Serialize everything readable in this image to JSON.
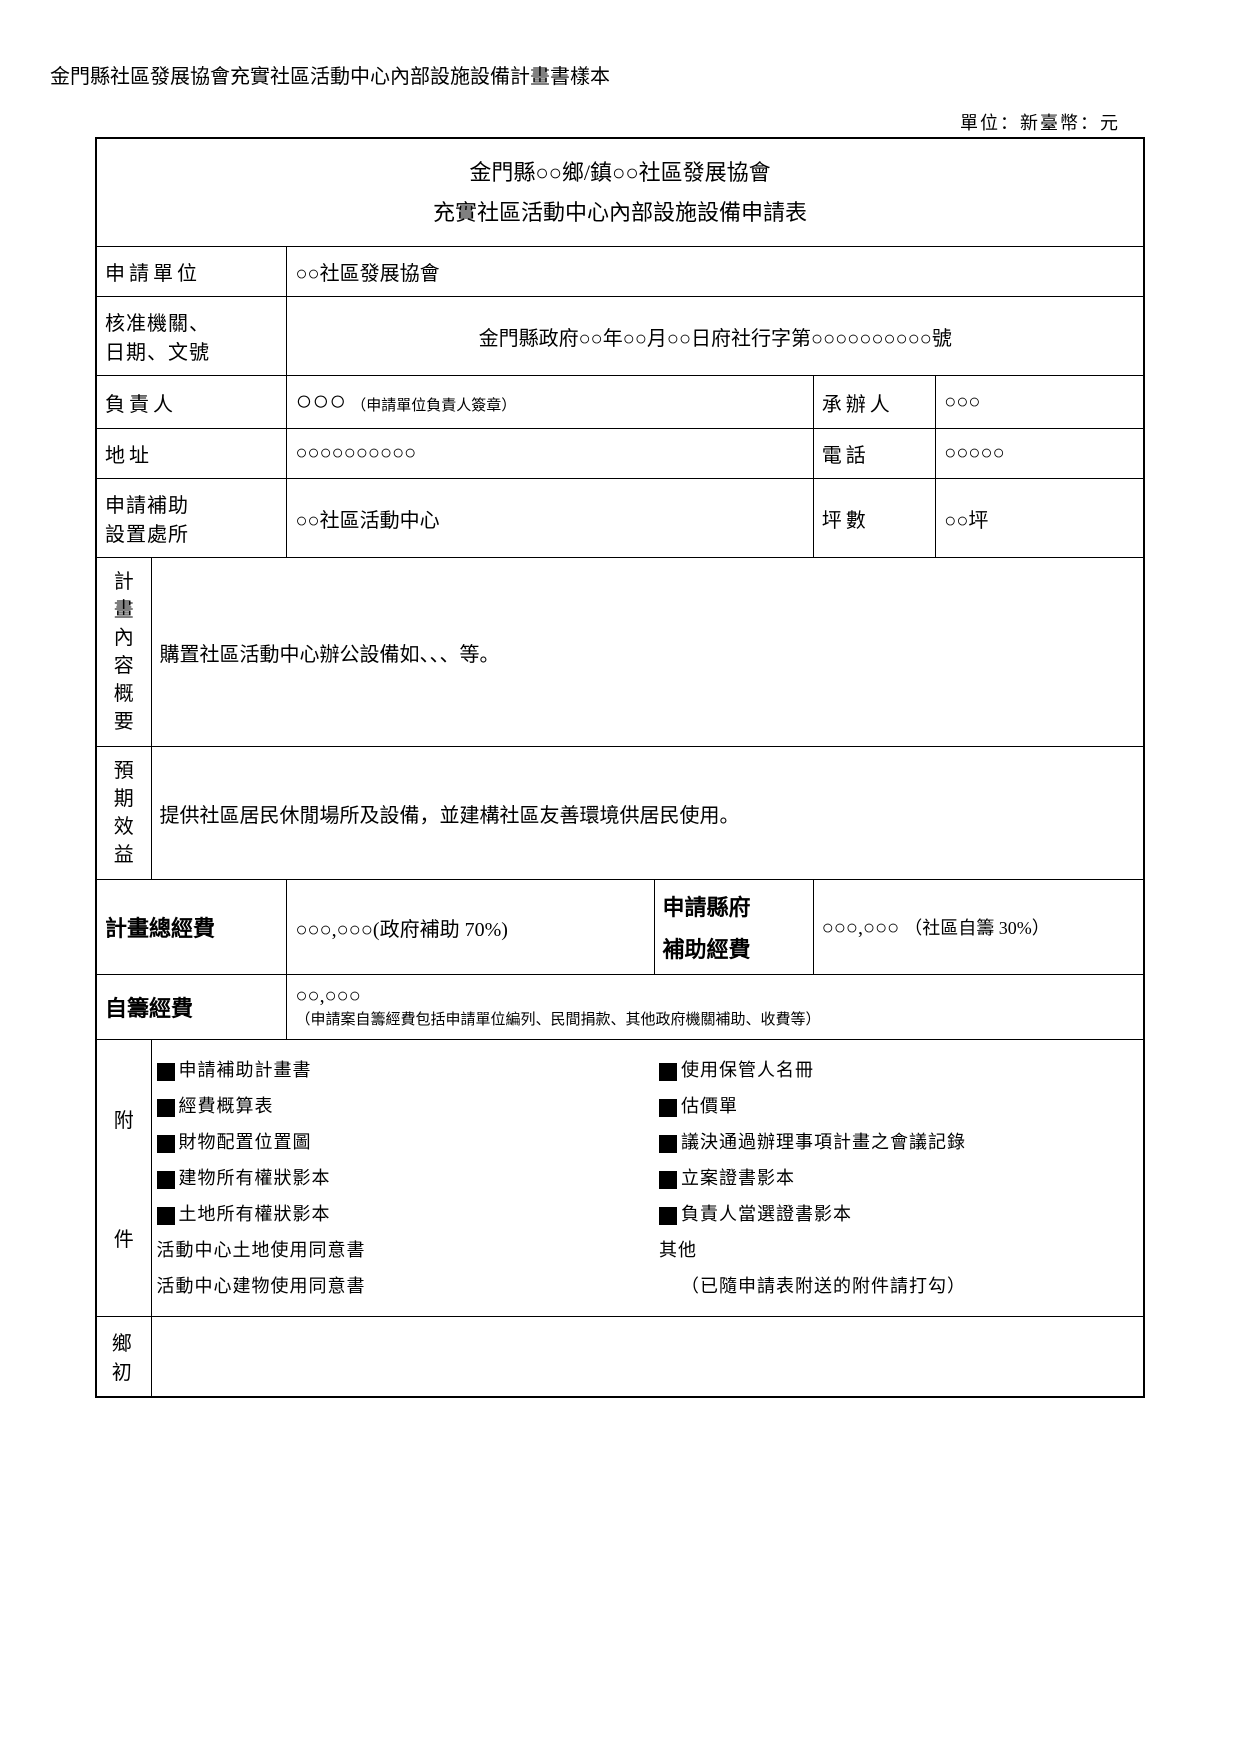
{
  "doc_title": "金門縣社區發展協會充實社區活動中心內部設施設備計畫書樣本",
  "unit_label": "單位：新臺幣：元",
  "header": {
    "line1": "金門縣○○鄉/鎮○○社區發展協會",
    "line2": "充實社區活動中心內部設施設備申請表"
  },
  "rows": {
    "apply_unit_label": "申請單位",
    "apply_unit_value": "○○社區發展協會",
    "approval_label1": "核准機關、",
    "approval_label2": "日期、文號",
    "approval_value": "金門縣政府○○年○○月○○日府社行字第○○○○○○○○○○號",
    "responsible_label": "負責人",
    "responsible_value": "○○○",
    "responsible_note": "（申請單位負責人簽章）",
    "handler_label": "承辦人",
    "handler_value": "○○○",
    "address_label": "地址",
    "address_value": "○○○○○○○○○○",
    "phone_label": "電話",
    "phone_value": "○○○○○",
    "location_label1": "申請補助",
    "location_label2": "設置處所",
    "location_value": "○○社區活動中心",
    "area_label": "坪數",
    "area_value": "○○坪",
    "plan_content_label": "計畫內容概要",
    "plan_content_value": "購置社區活動中心辦公設備如、、、等。",
    "expected_label": "預期效益",
    "expected_value": "提供社區居民休閒場所及設備，並建構社區友善環境供居民使用。",
    "total_budget_label": "計畫總經費",
    "total_budget_value": "○○○,○○○",
    "total_budget_note": "(政府補助 70%)",
    "county_subsidy_label1": "申請縣府",
    "county_subsidy_label2": "補助經費",
    "county_subsidy_value": "○○○,○○○",
    "county_subsidy_note": "（社區自籌 30%）",
    "self_fund_label": "自籌經費",
    "self_fund_value": "○○,○○○",
    "self_fund_note": "（申請案自籌經費包括申請單位編列、民間捐款、其他政府機關補助、收費等）",
    "attach_label_top": "附",
    "attach_label_bottom": "件",
    "footer_label": "鄉初"
  },
  "attachments_left": [
    {
      "checked": true,
      "text": "申請補助計畫書"
    },
    {
      "checked": true,
      "text": "經費概算表"
    },
    {
      "checked": true,
      "text": "財物配置位置圖"
    },
    {
      "checked": true,
      "text": "建物所有權狀影本"
    },
    {
      "checked": true,
      "text": "土地所有權狀影本"
    },
    {
      "checked": false,
      "text": "活動中心土地使用同意書"
    },
    {
      "checked": false,
      "text": "活動中心建物使用同意書"
    }
  ],
  "attachments_right": [
    {
      "checked": true,
      "text": "使用保管人名冊"
    },
    {
      "checked": true,
      "text": "估價單"
    },
    {
      "checked": true,
      "text": "議決通過辦理事項計畫之會議記錄"
    },
    {
      "checked": true,
      "text": "立案證書影本"
    },
    {
      "checked": true,
      "text": "負責人當選證書影本"
    },
    {
      "checked": false,
      "text": "其他"
    },
    {
      "checked": false,
      "text": "（已隨申請表附送的附件請打勾）"
    }
  ],
  "colors": {
    "text": "#000000",
    "background": "#ffffff",
    "border": "#000000"
  }
}
